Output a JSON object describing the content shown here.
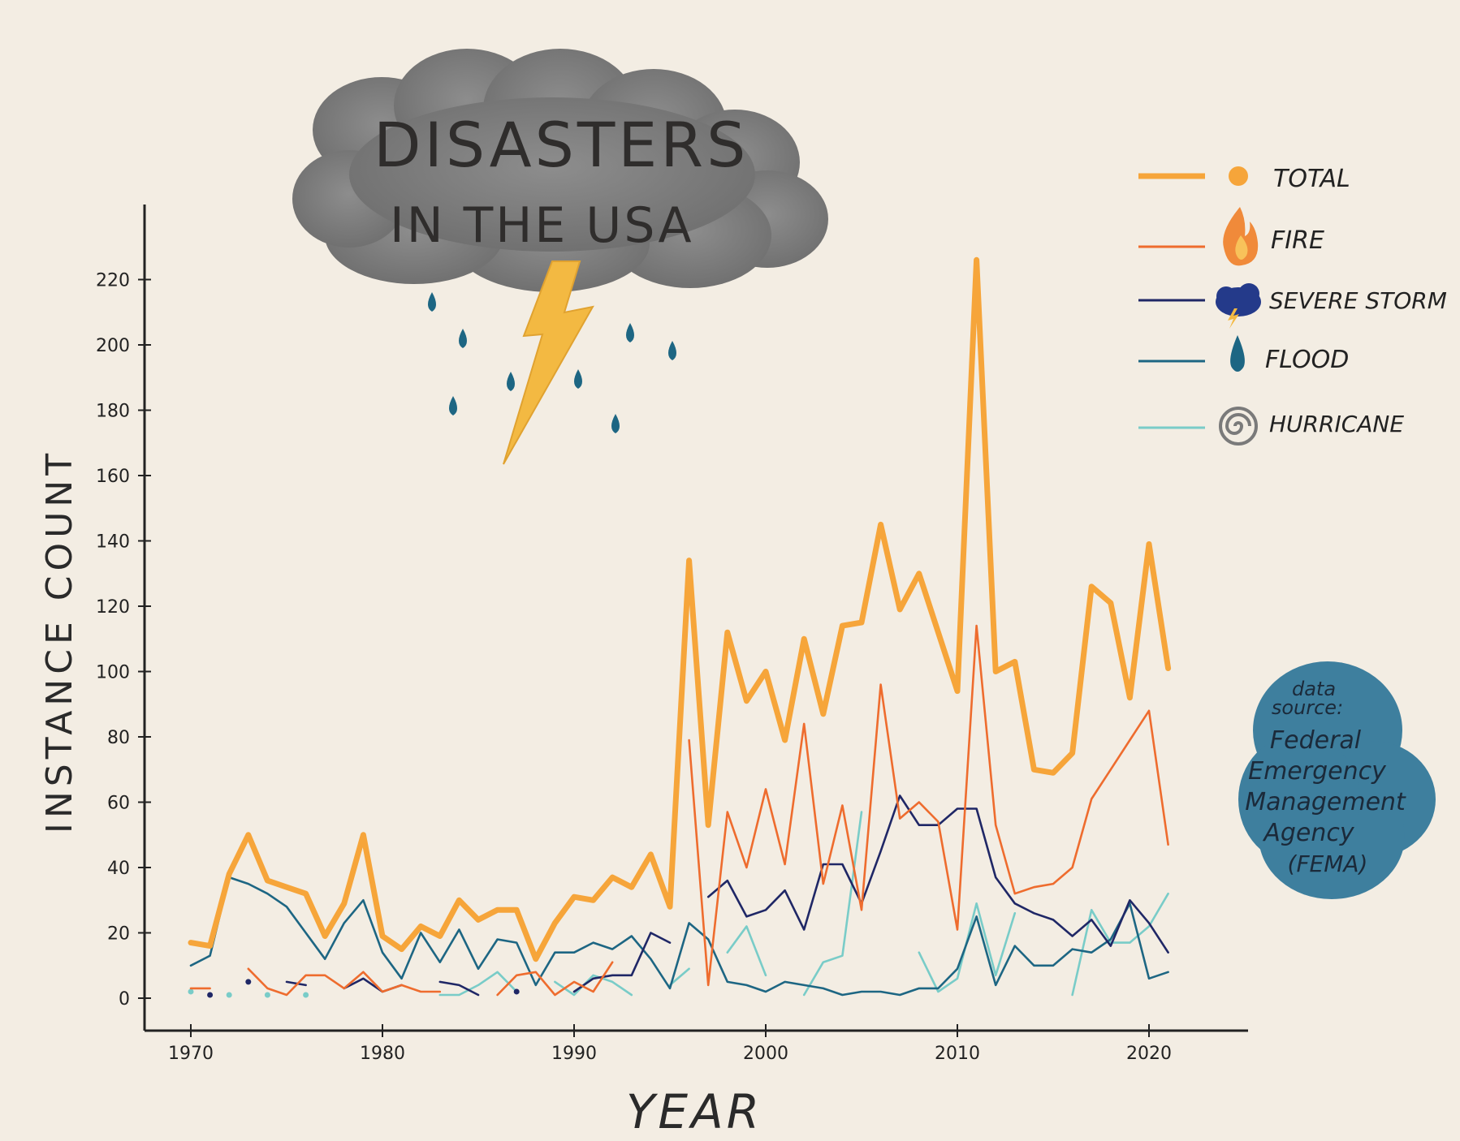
{
  "chart_data": {
    "type": "line",
    "title_line1": "DISASTERS",
    "title_line2": "IN THE USA",
    "xlabel": "YEAR",
    "ylabel": "INSTANCE COUNT",
    "xlim": [
      1968,
      2025
    ],
    "ylim": [
      -10,
      240
    ],
    "x_ticks": [
      1970,
      1980,
      1990,
      2000,
      2010,
      2020
    ],
    "y_ticks": [
      0,
      20,
      40,
      60,
      80,
      100,
      120,
      140,
      160,
      180,
      200,
      220
    ],
    "legend_position": "top-right",
    "source_note": [
      "data",
      "source:",
      "Federal",
      "Emergency",
      "Management",
      "Agency",
      "(FEMA)"
    ],
    "series": [
      {
        "name": "TOTAL",
        "color": "#f6a53a",
        "icon": "dot-icon",
        "x": [
          1970,
          1971,
          1972,
          1973,
          1974,
          1975,
          1976,
          1977,
          1978,
          1979,
          1980,
          1981,
          1982,
          1983,
          1984,
          1985,
          1986,
          1987,
          1988,
          1989,
          1990,
          1991,
          1992,
          1993,
          1994,
          1995,
          1996,
          1997,
          1998,
          1999,
          2000,
          2001,
          2002,
          2003,
          2004,
          2005,
          2006,
          2007,
          2008,
          2009,
          2010,
          2011,
          2012,
          2013,
          2014,
          2015,
          2016,
          2017,
          2018,
          2019,
          2020,
          2021
        ],
        "y": [
          17,
          16,
          38,
          50,
          36,
          34,
          32,
          19,
          29,
          50,
          19,
          15,
          22,
          19,
          30,
          24,
          27,
          27,
          12,
          23,
          31,
          30,
          37,
          34,
          44,
          28,
          134,
          53,
          112,
          91,
          100,
          79,
          110,
          87,
          114,
          115,
          145,
          119,
          130,
          112,
          94,
          226,
          100,
          103,
          70,
          69,
          75,
          126,
          121,
          92,
          139,
          101
        ]
      },
      {
        "name": "FIRE",
        "color": "#ee6c2e",
        "icon": "fire-icon",
        "x": [
          1970,
          1971,
          null,
          1973,
          1974,
          1975,
          1976,
          1977,
          1978,
          1979,
          1980,
          1981,
          1982,
          1983,
          null,
          1986,
          1987,
          1988,
          1989,
          1990,
          1991,
          1992,
          null,
          1996,
          1997,
          1998,
          1999,
          2000,
          2001,
          2002,
          2003,
          2004,
          2005,
          2006,
          2007,
          2008,
          2009,
          2010,
          2011,
          2012,
          2013,
          2014,
          2015,
          2016,
          2017,
          2018,
          2019,
          2020,
          2021
        ],
        "y": [
          3,
          3,
          null,
          9,
          3,
          1,
          7,
          7,
          3,
          8,
          2,
          4,
          2,
          2,
          null,
          1,
          7,
          8,
          1,
          5,
          2,
          11,
          null,
          79,
          4,
          57,
          40,
          64,
          41,
          84,
          35,
          59,
          27,
          96,
          55,
          60,
          54,
          21,
          114,
          53,
          32,
          34,
          35,
          40,
          61,
          70,
          79,
          88,
          47
        ]
      },
      {
        "name": "SEVERE STORM",
        "color": "#1f2766",
        "icon": "storm-icon",
        "x": [
          1975,
          1976,
          null,
          1978,
          1979,
          1980,
          1981,
          null,
          1983,
          1984,
          1985,
          null,
          1990,
          1991,
          1992,
          1993,
          1994,
          1995,
          null,
          1997,
          1998,
          1999,
          2000,
          2001,
          2002,
          2003,
          2004,
          2005,
          2006,
          2007,
          2008,
          2009,
          2010,
          2011,
          2012,
          2013,
          2014,
          2015,
          2016,
          2017,
          2018,
          2019,
          2020,
          2021
        ],
        "y": [
          5,
          4,
          null,
          3,
          6,
          2,
          4,
          null,
          5,
          4,
          1,
          null,
          2,
          6,
          7,
          7,
          20,
          17,
          null,
          31,
          36,
          25,
          27,
          33,
          21,
          41,
          41,
          29,
          45,
          62,
          53,
          53,
          58,
          58,
          37,
          29,
          26,
          24,
          19,
          24,
          16,
          30,
          23,
          14
        ],
        "dots": [
          [
            1971,
            1
          ],
          [
            1973,
            5
          ],
          [
            1987,
            2
          ]
        ]
      },
      {
        "name": "FLOOD",
        "color": "#1d6683",
        "icon": "flood-icon",
        "x": [
          1970,
          1971,
          1972,
          1973,
          1974,
          1975,
          1976,
          1977,
          1978,
          1979,
          1980,
          1981,
          1982,
          1983,
          1984,
          1985,
          1986,
          1987,
          1988,
          1989,
          1990,
          1991,
          1992,
          1993,
          1994,
          1995,
          1996,
          1997,
          1998,
          1999,
          2000,
          2001,
          2002,
          2003,
          2004,
          2005,
          2006,
          2007,
          2008,
          2009,
          2010,
          2011,
          2012,
          2013,
          2014,
          2015,
          2016,
          2017,
          2018,
          2019,
          2020,
          2021
        ],
        "y": [
          10,
          13,
          37,
          35,
          32,
          28,
          20,
          12,
          23,
          30,
          14,
          6,
          20,
          11,
          21,
          9,
          18,
          17,
          4,
          14,
          14,
          17,
          15,
          19,
          12,
          3,
          23,
          18,
          5,
          4,
          2,
          5,
          4,
          3,
          1,
          2,
          2,
          1,
          3,
          3,
          9,
          25,
          4,
          16,
          10,
          10,
          15,
          14,
          18,
          29,
          6,
          8
        ]
      },
      {
        "name": "HURRICANE",
        "color": "#79ccc8",
        "icon": "hurricane-icon",
        "x": [
          1983,
          1984,
          1985,
          1986,
          1987,
          null,
          1989,
          1990,
          1991,
          1992,
          1993,
          1994,
          1995,
          1996,
          null,
          1998,
          1999,
          2000,
          null,
          2002,
          2003,
          2004,
          2005,
          null,
          2008,
          2009,
          2010,
          2011,
          2012,
          2013,
          null,
          2016,
          2017,
          2018,
          2019,
          2020,
          2021
        ],
        "y": [
          1,
          1,
          4,
          8,
          2,
          null,
          5,
          1,
          7,
          5,
          1,
          null,
          4,
          9,
          null,
          14,
          22,
          7,
          null,
          1,
          11,
          13,
          57,
          null,
          14,
          2,
          6,
          29,
          7,
          26,
          null,
          1,
          27,
          17,
          17,
          22,
          32
        ],
        "dots": [
          [
            1970,
            2
          ],
          [
            1972,
            1
          ],
          [
            1974,
            1
          ],
          [
            1976,
            1
          ]
        ]
      }
    ]
  }
}
